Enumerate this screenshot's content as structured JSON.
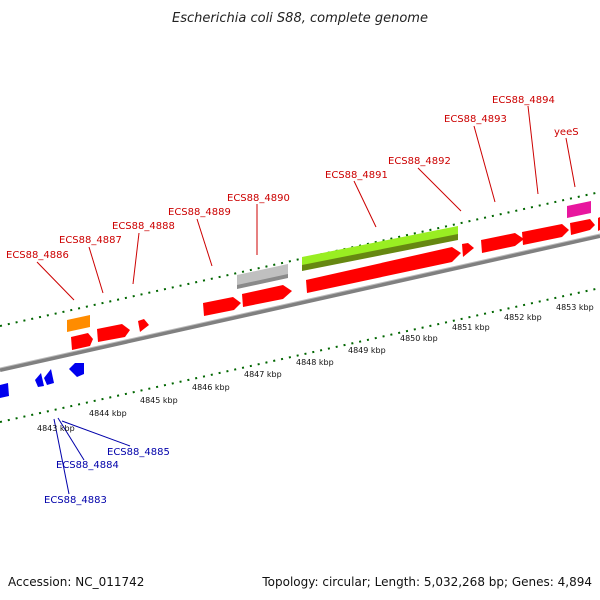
{
  "title": "Escherichia coli S88, complete genome",
  "footer": {
    "accession": "Accession: NC_011742",
    "summary": "Topology: circular; Length: 5,032,268 bp; Genes: 4,894"
  },
  "colors": {
    "forward_label": "#cc0000",
    "reverse_label": "#0000aa",
    "forward_gene": "#ff0000",
    "reverse_gene": "#0000ee",
    "rrna": "#ff8c00",
    "trna": "#e8169e",
    "pseudo": "#c0c0c0",
    "other_feature": "#99ee22",
    "tick": "#006600",
    "backbone": "#808080"
  },
  "scale_labels": [
    "4843 kbp",
    "4844 kbp",
    "4845 kbp",
    "4846 kbp",
    "4847 kbp",
    "4848 kbp",
    "4849 kbp",
    "4850 kbp",
    "4851 kbp",
    "4852 kbp",
    "4853 kbp"
  ],
  "forward_gene_labels": [
    "ECS88_4886",
    "ECS88_4887",
    "ECS88_4888",
    "ECS88_4889",
    "ECS88_4890",
    "ECS88_4891",
    "ECS88_4892",
    "ECS88_4893",
    "ECS88_4894",
    "yeeS"
  ],
  "reverse_gene_labels": [
    "ECS88_4885",
    "ECS88_4884",
    "ECS88_4883"
  ]
}
